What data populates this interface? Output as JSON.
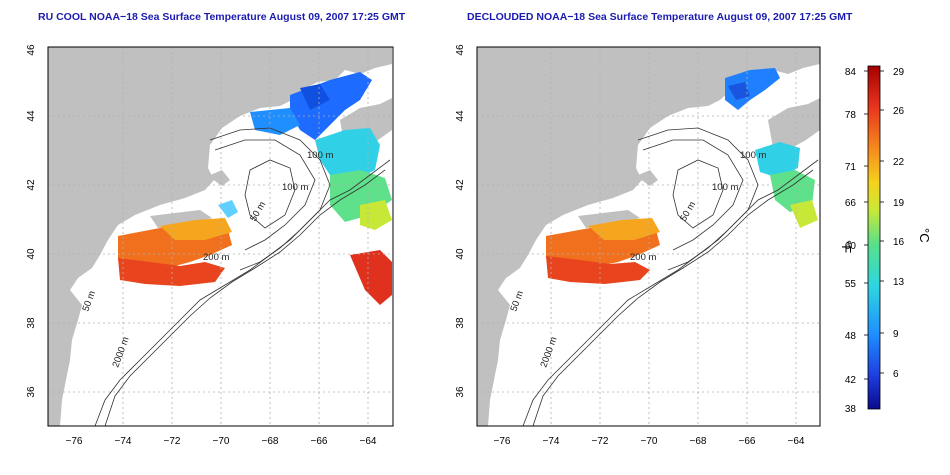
{
  "panels": [
    {
      "title": "RU COOL NOAA−18 Sea Surface Temperature August 09, 2007 17:25 GMT",
      "x_ticks": [
        "−76",
        "−74",
        "−72",
        "−70",
        "−68",
        "−66",
        "−64"
      ],
      "y_ticks": [
        "36",
        "38",
        "40",
        "42",
        "44",
        "46"
      ],
      "contour_labels": [
        "100 m",
        "100 m",
        "50 m",
        "200 m",
        "50 m",
        "2000 m"
      ]
    },
    {
      "title": "DECLOUDED NOAA−18 Sea Surface Temperature August 09, 2007 17:25 GMT",
      "x_ticks": [
        "−76",
        "−74",
        "−72",
        "−70",
        "−68",
        "−66",
        "−64"
      ],
      "y_ticks": [
        "36",
        "38",
        "40",
        "42",
        "44",
        "46"
      ],
      "contour_labels": [
        "100 m",
        "100 m",
        "50 m",
        "200 m",
        "50 m",
        "2000 m"
      ]
    }
  ],
  "colorbar": {
    "f_label": "°F",
    "c_label": "°C",
    "f_ticks": [
      "84",
      "78",
      "71",
      "66",
      "60",
      "55",
      "48",
      "42",
      "38"
    ],
    "c_ticks": [
      "29",
      "26",
      "22",
      "19",
      "16",
      "13",
      "9",
      "6"
    ],
    "colors": [
      "#0a0a8c",
      "#1f3fe0",
      "#1e90ff",
      "#2ed6e0",
      "#58e08a",
      "#c8e838",
      "#f5d21e",
      "#f58a1e",
      "#e8351e",
      "#a30000"
    ]
  },
  "map_style": {
    "land": "#c0c0c0",
    "ocean_nodata": "#ffffff",
    "grid": "#b0b0b0",
    "contour": "#333333"
  }
}
